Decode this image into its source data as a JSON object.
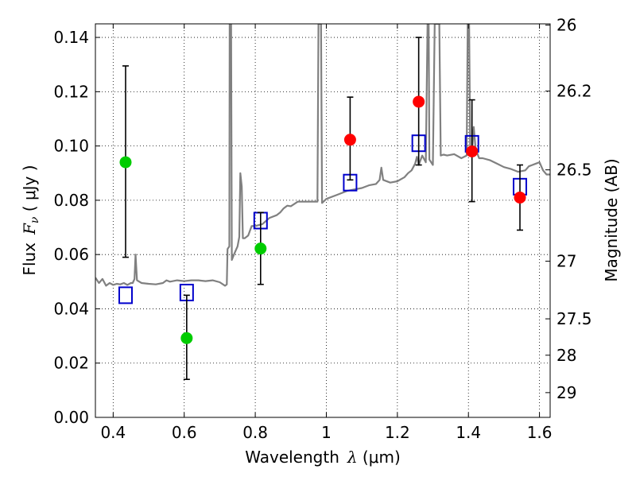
{
  "chart_data": {
    "type": "scatter",
    "xlabel_text": "Wavelength",
    "xlabel_symbol": "λ",
    "xlabel_unit": " (μm)",
    "ylabel_text": "Flux",
    "ylabel_symbol": "F",
    "ylabel_subscript": "ν",
    "ylabel_unit": "  ( μJy )",
    "y2label": "Magnitude (AB)",
    "xlim": [
      0.35,
      1.63
    ],
    "ylim": [
      0.0,
      0.145
    ],
    "xticks": [
      0.4,
      0.6,
      0.8,
      1.0,
      1.2,
      1.4,
      1.6
    ],
    "xtick_labels": [
      "0.4",
      "0.6",
      "0.8",
      "1",
      "1.2",
      "1.4",
      "1.6"
    ],
    "yticks": [
      0.0,
      0.02,
      0.04,
      0.06,
      0.08,
      0.1,
      0.12,
      0.14
    ],
    "ytick_labels": [
      "0.00",
      "0.02",
      "0.04",
      "0.06",
      "0.08",
      "0.10",
      "0.12",
      "0.14"
    ],
    "mag_ticks": [
      {
        "mag": 26,
        "label": "26"
      },
      {
        "mag": 26.2,
        "label": "26.2"
      },
      {
        "mag": 26.5,
        "label": "26.5"
      },
      {
        "mag": 27,
        "label": "27"
      },
      {
        "mag": 27.5,
        "label": "27.5"
      },
      {
        "mag": 28,
        "label": "28"
      },
      {
        "mag": 29,
        "label": "29"
      }
    ],
    "grid": true,
    "series": [
      {
        "kind": "spectrum",
        "color": "#808080",
        "points": [
          [
            0.35,
            0.0515
          ],
          [
            0.36,
            0.0495
          ],
          [
            0.37,
            0.051
          ],
          [
            0.38,
            0.0485
          ],
          [
            0.39,
            0.0495
          ],
          [
            0.4,
            0.0488
          ],
          [
            0.41,
            0.0492
          ],
          [
            0.42,
            0.049
          ],
          [
            0.43,
            0.0495
          ],
          [
            0.44,
            0.0488
          ],
          [
            0.45,
            0.0495
          ],
          [
            0.455,
            0.0495
          ],
          [
            0.46,
            0.051
          ],
          [
            0.463,
            0.06
          ],
          [
            0.467,
            0.0505
          ],
          [
            0.48,
            0.0495
          ],
          [
            0.5,
            0.0492
          ],
          [
            0.52,
            0.049
          ],
          [
            0.54,
            0.0495
          ],
          [
            0.55,
            0.0505
          ],
          [
            0.56,
            0.05
          ],
          [
            0.58,
            0.0505
          ],
          [
            0.6,
            0.0502
          ],
          [
            0.62,
            0.0505
          ],
          [
            0.64,
            0.0505
          ],
          [
            0.66,
            0.0502
          ],
          [
            0.68,
            0.0505
          ],
          [
            0.7,
            0.0498
          ],
          [
            0.715,
            0.0485
          ],
          [
            0.72,
            0.049
          ],
          [
            0.722,
            0.062
          ],
          [
            0.727,
            0.063
          ],
          [
            0.728,
            0.145
          ],
          [
            0.732,
            0.145
          ],
          [
            0.734,
            0.058
          ],
          [
            0.74,
            0.06
          ],
          [
            0.745,
            0.0615
          ],
          [
            0.75,
            0.063
          ],
          [
            0.755,
            0.0665
          ],
          [
            0.758,
            0.09
          ],
          [
            0.762,
            0.085
          ],
          [
            0.765,
            0.066
          ],
          [
            0.77,
            0.066
          ],
          [
            0.78,
            0.067
          ],
          [
            0.79,
            0.0705
          ],
          [
            0.8,
            0.0705
          ],
          [
            0.82,
            0.0712
          ],
          [
            0.84,
            0.0735
          ],
          [
            0.86,
            0.0745
          ],
          [
            0.87,
            0.0755
          ],
          [
            0.88,
            0.077
          ],
          [
            0.89,
            0.078
          ],
          [
            0.9,
            0.0778
          ],
          [
            0.92,
            0.0795
          ],
          [
            0.94,
            0.0795
          ],
          [
            0.96,
            0.0795
          ],
          [
            0.975,
            0.0795
          ],
          [
            0.978,
            0.145
          ],
          [
            0.985,
            0.145
          ],
          [
            0.988,
            0.079
          ],
          [
            1.0,
            0.0805
          ],
          [
            1.03,
            0.082
          ],
          [
            1.06,
            0.0835
          ],
          [
            1.08,
            0.084
          ],
          [
            1.1,
            0.0845
          ],
          [
            1.12,
            0.0855
          ],
          [
            1.14,
            0.086
          ],
          [
            1.15,
            0.0875
          ],
          [
            1.155,
            0.092
          ],
          [
            1.16,
            0.0875
          ],
          [
            1.18,
            0.0865
          ],
          [
            1.2,
            0.087
          ],
          [
            1.22,
            0.0885
          ],
          [
            1.23,
            0.09
          ],
          [
            1.24,
            0.091
          ],
          [
            1.25,
            0.0935
          ],
          [
            1.255,
            0.096
          ],
          [
            1.26,
            0.093
          ],
          [
            1.27,
            0.0965
          ],
          [
            1.28,
            0.094
          ],
          [
            1.285,
            0.145
          ],
          [
            1.288,
            0.145
          ],
          [
            1.29,
            0.095
          ],
          [
            1.3,
            0.093
          ],
          [
            1.305,
            0.145
          ],
          [
            1.318,
            0.145
          ],
          [
            1.322,
            0.0965
          ],
          [
            1.33,
            0.0968
          ],
          [
            1.34,
            0.0965
          ],
          [
            1.36,
            0.097
          ],
          [
            1.38,
            0.0955
          ],
          [
            1.395,
            0.0965
          ],
          [
            1.398,
            0.145
          ],
          [
            1.402,
            0.145
          ],
          [
            1.405,
            0.0965
          ],
          [
            1.41,
            0.0975
          ],
          [
            1.415,
            0.107
          ],
          [
            1.42,
            0.099
          ],
          [
            1.43,
            0.0955
          ],
          [
            1.44,
            0.0955
          ],
          [
            1.46,
            0.0948
          ],
          [
            1.48,
            0.0935
          ],
          [
            1.5,
            0.0922
          ],
          [
            1.52,
            0.0915
          ],
          [
            1.54,
            0.0905
          ],
          [
            1.56,
            0.091
          ],
          [
            1.57,
            0.0925
          ],
          [
            1.58,
            0.093
          ],
          [
            1.59,
            0.0935
          ],
          [
            1.6,
            0.094
          ],
          [
            1.61,
            0.091
          ],
          [
            1.62,
            0.0895
          ],
          [
            1.63,
            0.0895
          ]
        ]
      },
      {
        "kind": "model_photometry",
        "marker": "open-square",
        "color": "#0000cc",
        "x": [
          0.435,
          0.607,
          0.815,
          1.067,
          1.26,
          1.41,
          1.545
        ],
        "y": [
          0.045,
          0.046,
          0.0725,
          0.0865,
          0.101,
          0.1008,
          0.085
        ]
      },
      {
        "kind": "observed_detection",
        "marker": "filled-circle",
        "color": "#ff0000",
        "x": [
          1.067,
          1.26,
          1.41,
          1.545
        ],
        "y": [
          0.1023,
          0.1163,
          0.098,
          0.081
        ],
        "err_low": [
          0.0875,
          0.093,
          0.0795,
          0.069
        ],
        "err_high": [
          0.118,
          0.14,
          0.117,
          0.093
        ]
      },
      {
        "kind": "observed_other",
        "marker": "filled-circle",
        "color": "#00cc00",
        "x": [
          0.435,
          0.607,
          0.815
        ],
        "y": [
          0.094,
          0.0292,
          0.0622
        ],
        "err_low": [
          0.059,
          0.014,
          0.049
        ],
        "err_high": [
          0.1295,
          0.045,
          0.0755
        ]
      }
    ]
  }
}
